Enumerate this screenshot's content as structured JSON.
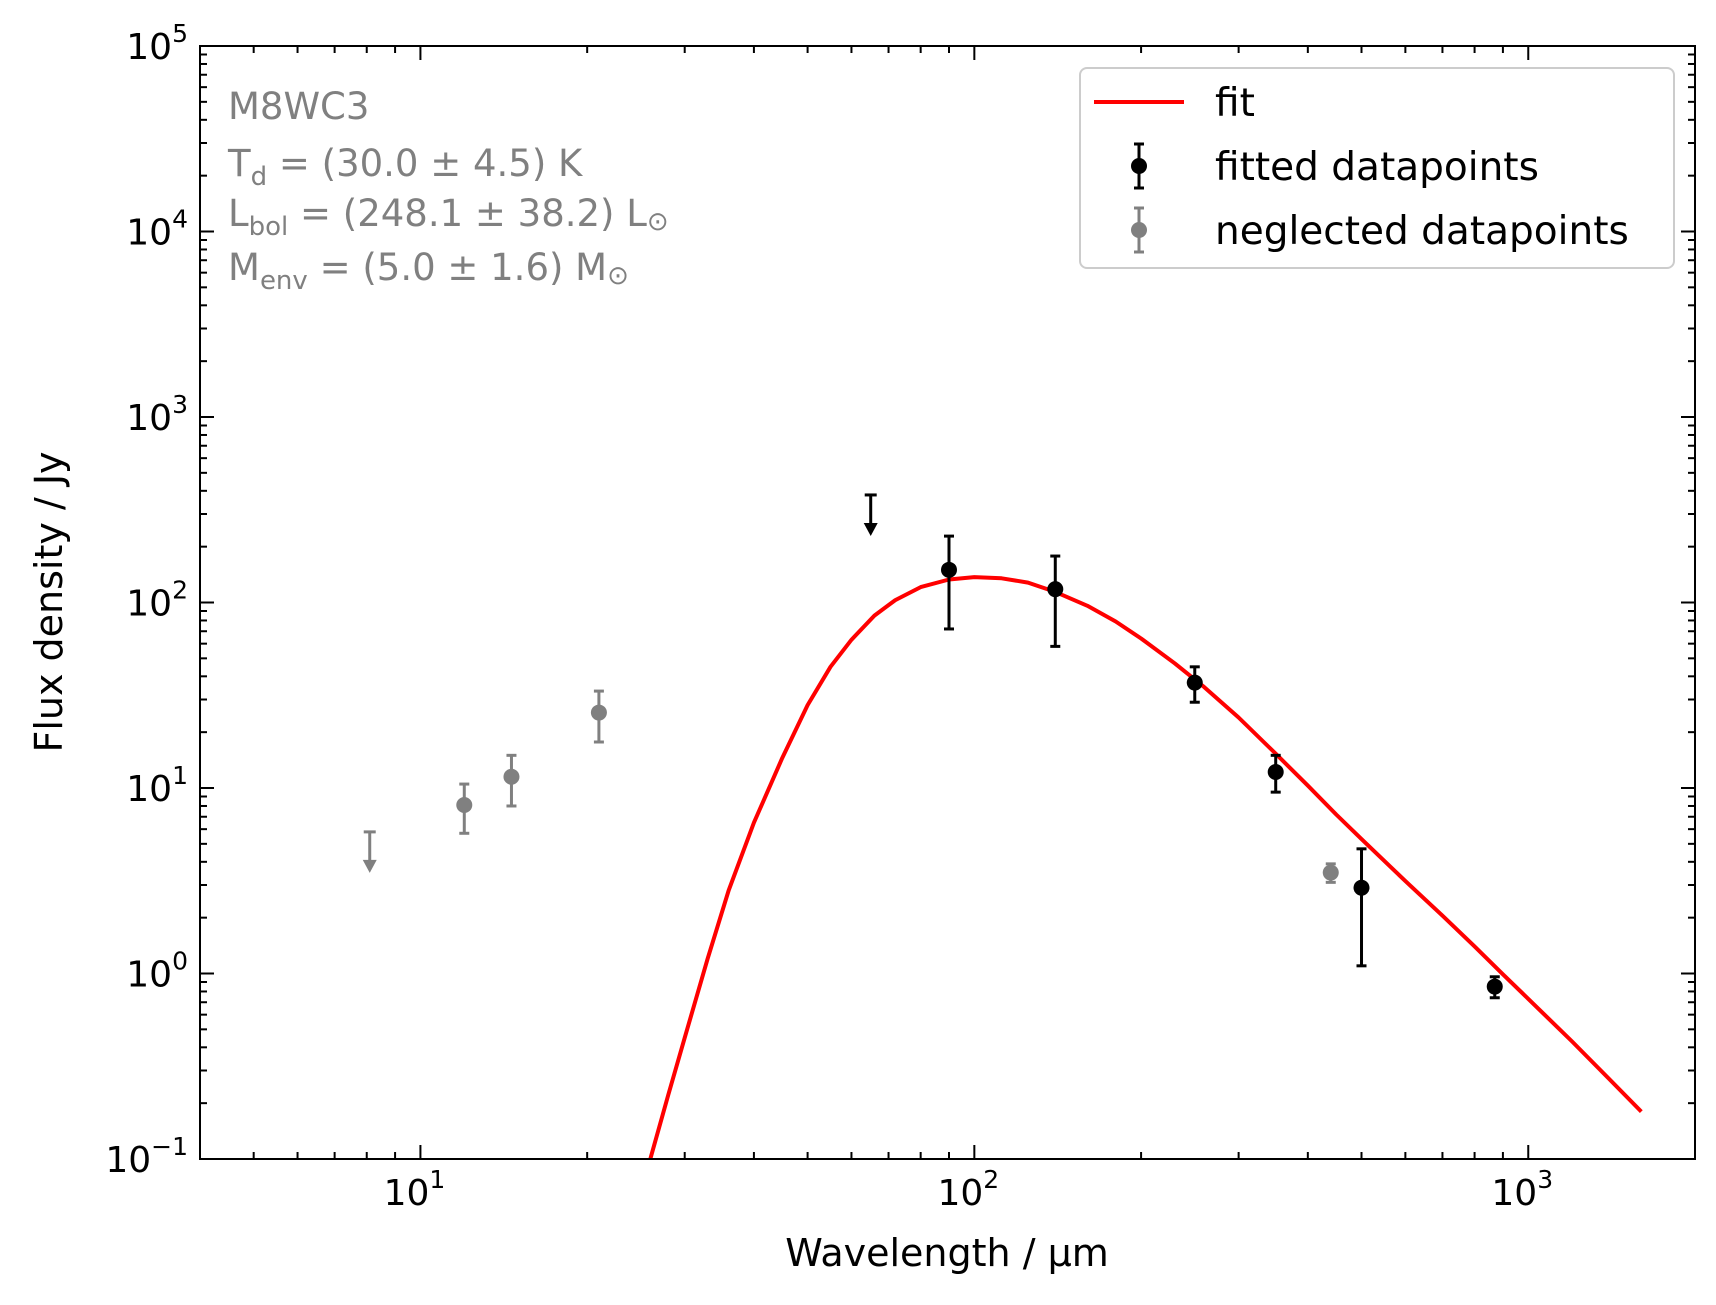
{
  "chart_data": {
    "type": "scatter",
    "xlabel": "Wavelength / μm",
    "ylabel": "Flux density / Jy",
    "xscale": "log",
    "yscale": "log",
    "xlim": [
      4.0,
      2000
    ],
    "ylim": [
      0.1,
      100000
    ],
    "grid": false,
    "legend_position": "top-right",
    "x_ticks": [
      {
        "value": 10,
        "base": "10",
        "exp": "1"
      },
      {
        "value": 100,
        "base": "10",
        "exp": "2"
      },
      {
        "value": 1000,
        "base": "10",
        "exp": "3"
      }
    ],
    "y_ticks": [
      {
        "value": 0.1,
        "base": "10",
        "exp": "−1"
      },
      {
        "value": 1,
        "base": "10",
        "exp": "0"
      },
      {
        "value": 10,
        "base": "10",
        "exp": "1"
      },
      {
        "value": 100,
        "base": "10",
        "exp": "2"
      },
      {
        "value": 1000,
        "base": "10",
        "exp": "3"
      },
      {
        "value": 10000,
        "base": "10",
        "exp": "4"
      },
      {
        "value": 100000,
        "base": "10",
        "exp": "5"
      }
    ],
    "annotation": {
      "name": "M8WC3",
      "lines": [
        {
          "main": "T",
          "sub": "d",
          "rest": " = (30.0 ± 4.5) K"
        },
        {
          "main": "L",
          "sub": "bol",
          "rest": " = (248.1 ± 38.2) L",
          "symbol": "⊙"
        },
        {
          "main": "M",
          "sub": "env",
          "rest": " = (5.0 ± 1.6) M",
          "symbol": "⊙"
        }
      ]
    },
    "legend": [
      {
        "label": "fit",
        "kind": "line",
        "color": "#ff0000"
      },
      {
        "label": "fitted datapoints",
        "kind": "errorbar",
        "color": "#000000"
      },
      {
        "label": "neglected datapoints",
        "kind": "errorbar",
        "color": "#808080"
      }
    ],
    "fit": {
      "color": "#ff0000",
      "x": [
        26,
        28,
        30,
        33,
        36,
        40,
        45,
        50,
        55,
        60,
        66,
        72,
        80,
        90,
        100,
        112,
        125,
        140,
        160,
        180,
        200,
        230,
        260,
        300,
        350,
        400,
        450,
        500,
        600,
        700,
        800,
        900,
        1000,
        1200,
        1400,
        1600
      ],
      "y": [
        0.1,
        0.22,
        0.45,
        1.2,
        2.8,
        6.5,
        14.5,
        28,
        45,
        63,
        85,
        103,
        121,
        133,
        137,
        135,
        128,
        114,
        96,
        79,
        64,
        47,
        35,
        24,
        15.3,
        10.3,
        7.2,
        5.3,
        3.15,
        2.05,
        1.4,
        0.99,
        0.73,
        0.43,
        0.27,
        0.18
      ]
    },
    "fitted_datapoints": {
      "color": "#000000",
      "points": [
        {
          "x": 90,
          "y": 150,
          "y_low": 72,
          "y_high": 228
        },
        {
          "x": 140,
          "y": 118,
          "y_low": 58,
          "y_high": 178
        },
        {
          "x": 250,
          "y": 37,
          "y_low": 29,
          "y_high": 45
        },
        {
          "x": 350,
          "y": 12.2,
          "y_low": 9.5,
          "y_high": 15
        },
        {
          "x": 500,
          "y": 2.9,
          "y_low": 1.1,
          "y_high": 4.7
        },
        {
          "x": 870,
          "y": 0.85,
          "y_low": 0.74,
          "y_high": 0.96
        }
      ],
      "upper_limits": [
        {
          "x": 65,
          "y": 380
        }
      ]
    },
    "neglected_datapoints": {
      "color": "#808080",
      "points": [
        {
          "x": 12,
          "y": 8.1,
          "y_low": 5.7,
          "y_high": 10.5
        },
        {
          "x": 14.6,
          "y": 11.5,
          "y_low": 8.0,
          "y_high": 15.0
        },
        {
          "x": 21,
          "y": 25.5,
          "y_low": 17.7,
          "y_high": 33.3
        },
        {
          "x": 440,
          "y": 3.5,
          "y_low": 3.1,
          "y_high": 3.9
        }
      ],
      "upper_limits": [
        {
          "x": 8.1,
          "y": 5.8
        }
      ]
    }
  }
}
